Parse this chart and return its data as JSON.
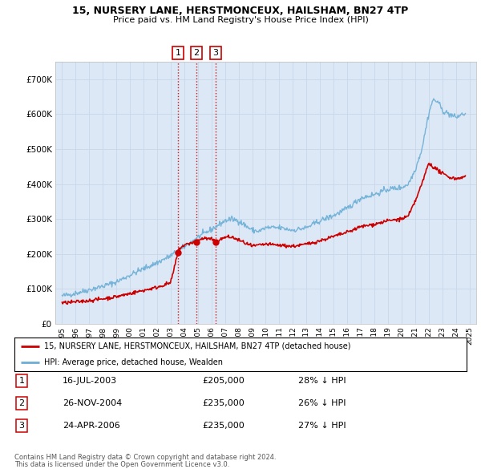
{
  "title": "15, NURSERY LANE, HERSTMONCEUX, HAILSHAM, BN27 4TP",
  "subtitle": "Price paid vs. HM Land Registry's House Price Index (HPI)",
  "background_color": "#ffffff",
  "plot_bg_color": "#dce8f5",
  "grid_color": "#ffffff",
  "transactions": [
    {
      "label": "1",
      "date": "16-JUL-2003",
      "price": 205000,
      "hpi_pct": "28% ↓ HPI",
      "x_year": 2003.54
    },
    {
      "label": "2",
      "date": "26-NOV-2004",
      "price": 235000,
      "hpi_pct": "26% ↓ HPI",
      "x_year": 2004.9
    },
    {
      "label": "3",
      "date": "24-APR-2006",
      "price": 235000,
      "hpi_pct": "27% ↓ HPI",
      "x_year": 2006.31
    }
  ],
  "legend_line1": "15, NURSERY LANE, HERSTMONCEUX, HAILSHAM, BN27 4TP (detached house)",
  "legend_line2": "HPI: Average price, detached house, Wealden",
  "footer1": "Contains HM Land Registry data © Crown copyright and database right 2024.",
  "footer2": "This data is licensed under the Open Government Licence v3.0.",
  "hpi_color": "#6baed6",
  "price_color": "#cc0000",
  "ylim": [
    0,
    750000
  ],
  "xlim_start": 1994.5,
  "xlim_end": 2025.5,
  "yticks": [
    0,
    100000,
    200000,
    300000,
    400000,
    500000,
    600000,
    700000
  ],
  "ytick_labels": [
    "£0",
    "£100K",
    "£200K",
    "£300K",
    "£400K",
    "£500K",
    "£600K",
    "£700K"
  ],
  "xticks_start": 1995,
  "xticks_end": 2025
}
